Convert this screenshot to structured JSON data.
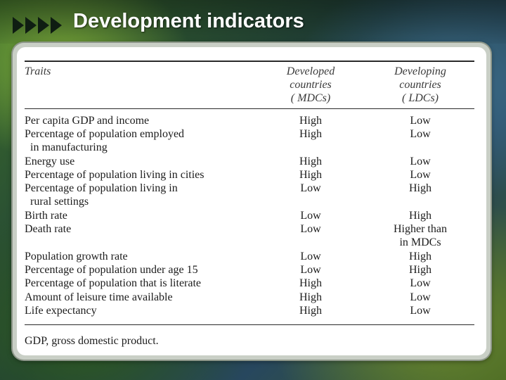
{
  "slide": {
    "title": "Development indicators"
  },
  "table": {
    "headers": {
      "traits": "Traits",
      "developed_line1": "Developed",
      "developed_line2": "countries",
      "developed_line3": "( MDCs)",
      "developing_line1": "Developing",
      "developing_line2": "countries",
      "developing_line3": "( LDCs)"
    },
    "rows": [
      {
        "trait": "Per capita GDP and income",
        "trait_cont": "",
        "mdc": "High",
        "ldc": "Low",
        "ldc_cont": ""
      },
      {
        "trait": "Percentage of population employed",
        "trait_cont": "in  manufacturing",
        "mdc": "High",
        "ldc": "Low",
        "ldc_cont": ""
      },
      {
        "trait": "Energy use",
        "trait_cont": "",
        "mdc": "High",
        "ldc": "Low",
        "ldc_cont": ""
      },
      {
        "trait": "Percentage of population living in cities",
        "trait_cont": "",
        "mdc": "High",
        "ldc": "Low",
        "ldc_cont": ""
      },
      {
        "trait": "Percentage of population living in",
        "trait_cont": "rural settings",
        "mdc": "Low",
        "ldc": "High",
        "ldc_cont": ""
      },
      {
        "trait": "Birth rate",
        "trait_cont": "",
        "mdc": "Low",
        "ldc": "High",
        "ldc_cont": ""
      },
      {
        "trait": "Death rate",
        "trait_cont": "",
        "mdc": "Low",
        "ldc": "Higher than",
        "ldc_cont": "in MDCs"
      },
      {
        "trait": "Population growth rate",
        "trait_cont": "",
        "mdc": "Low",
        "ldc": "High",
        "ldc_cont": ""
      },
      {
        "trait": "Percentage of population under age 15",
        "trait_cont": "",
        "mdc": "Low",
        "ldc": "High",
        "ldc_cont": ""
      },
      {
        "trait": "Percentage of population that is literate",
        "trait_cont": "",
        "mdc": "High",
        "ldc": "Low",
        "ldc_cont": ""
      },
      {
        "trait": "Amount of leisure time available",
        "trait_cont": "",
        "mdc": "High",
        "ldc": "Low",
        "ldc_cont": ""
      },
      {
        "trait": "Life expectancy",
        "trait_cont": "",
        "mdc": "High",
        "ldc": "Low",
        "ldc_cont": ""
      }
    ],
    "footnote": "GDP, gross domestic product."
  }
}
